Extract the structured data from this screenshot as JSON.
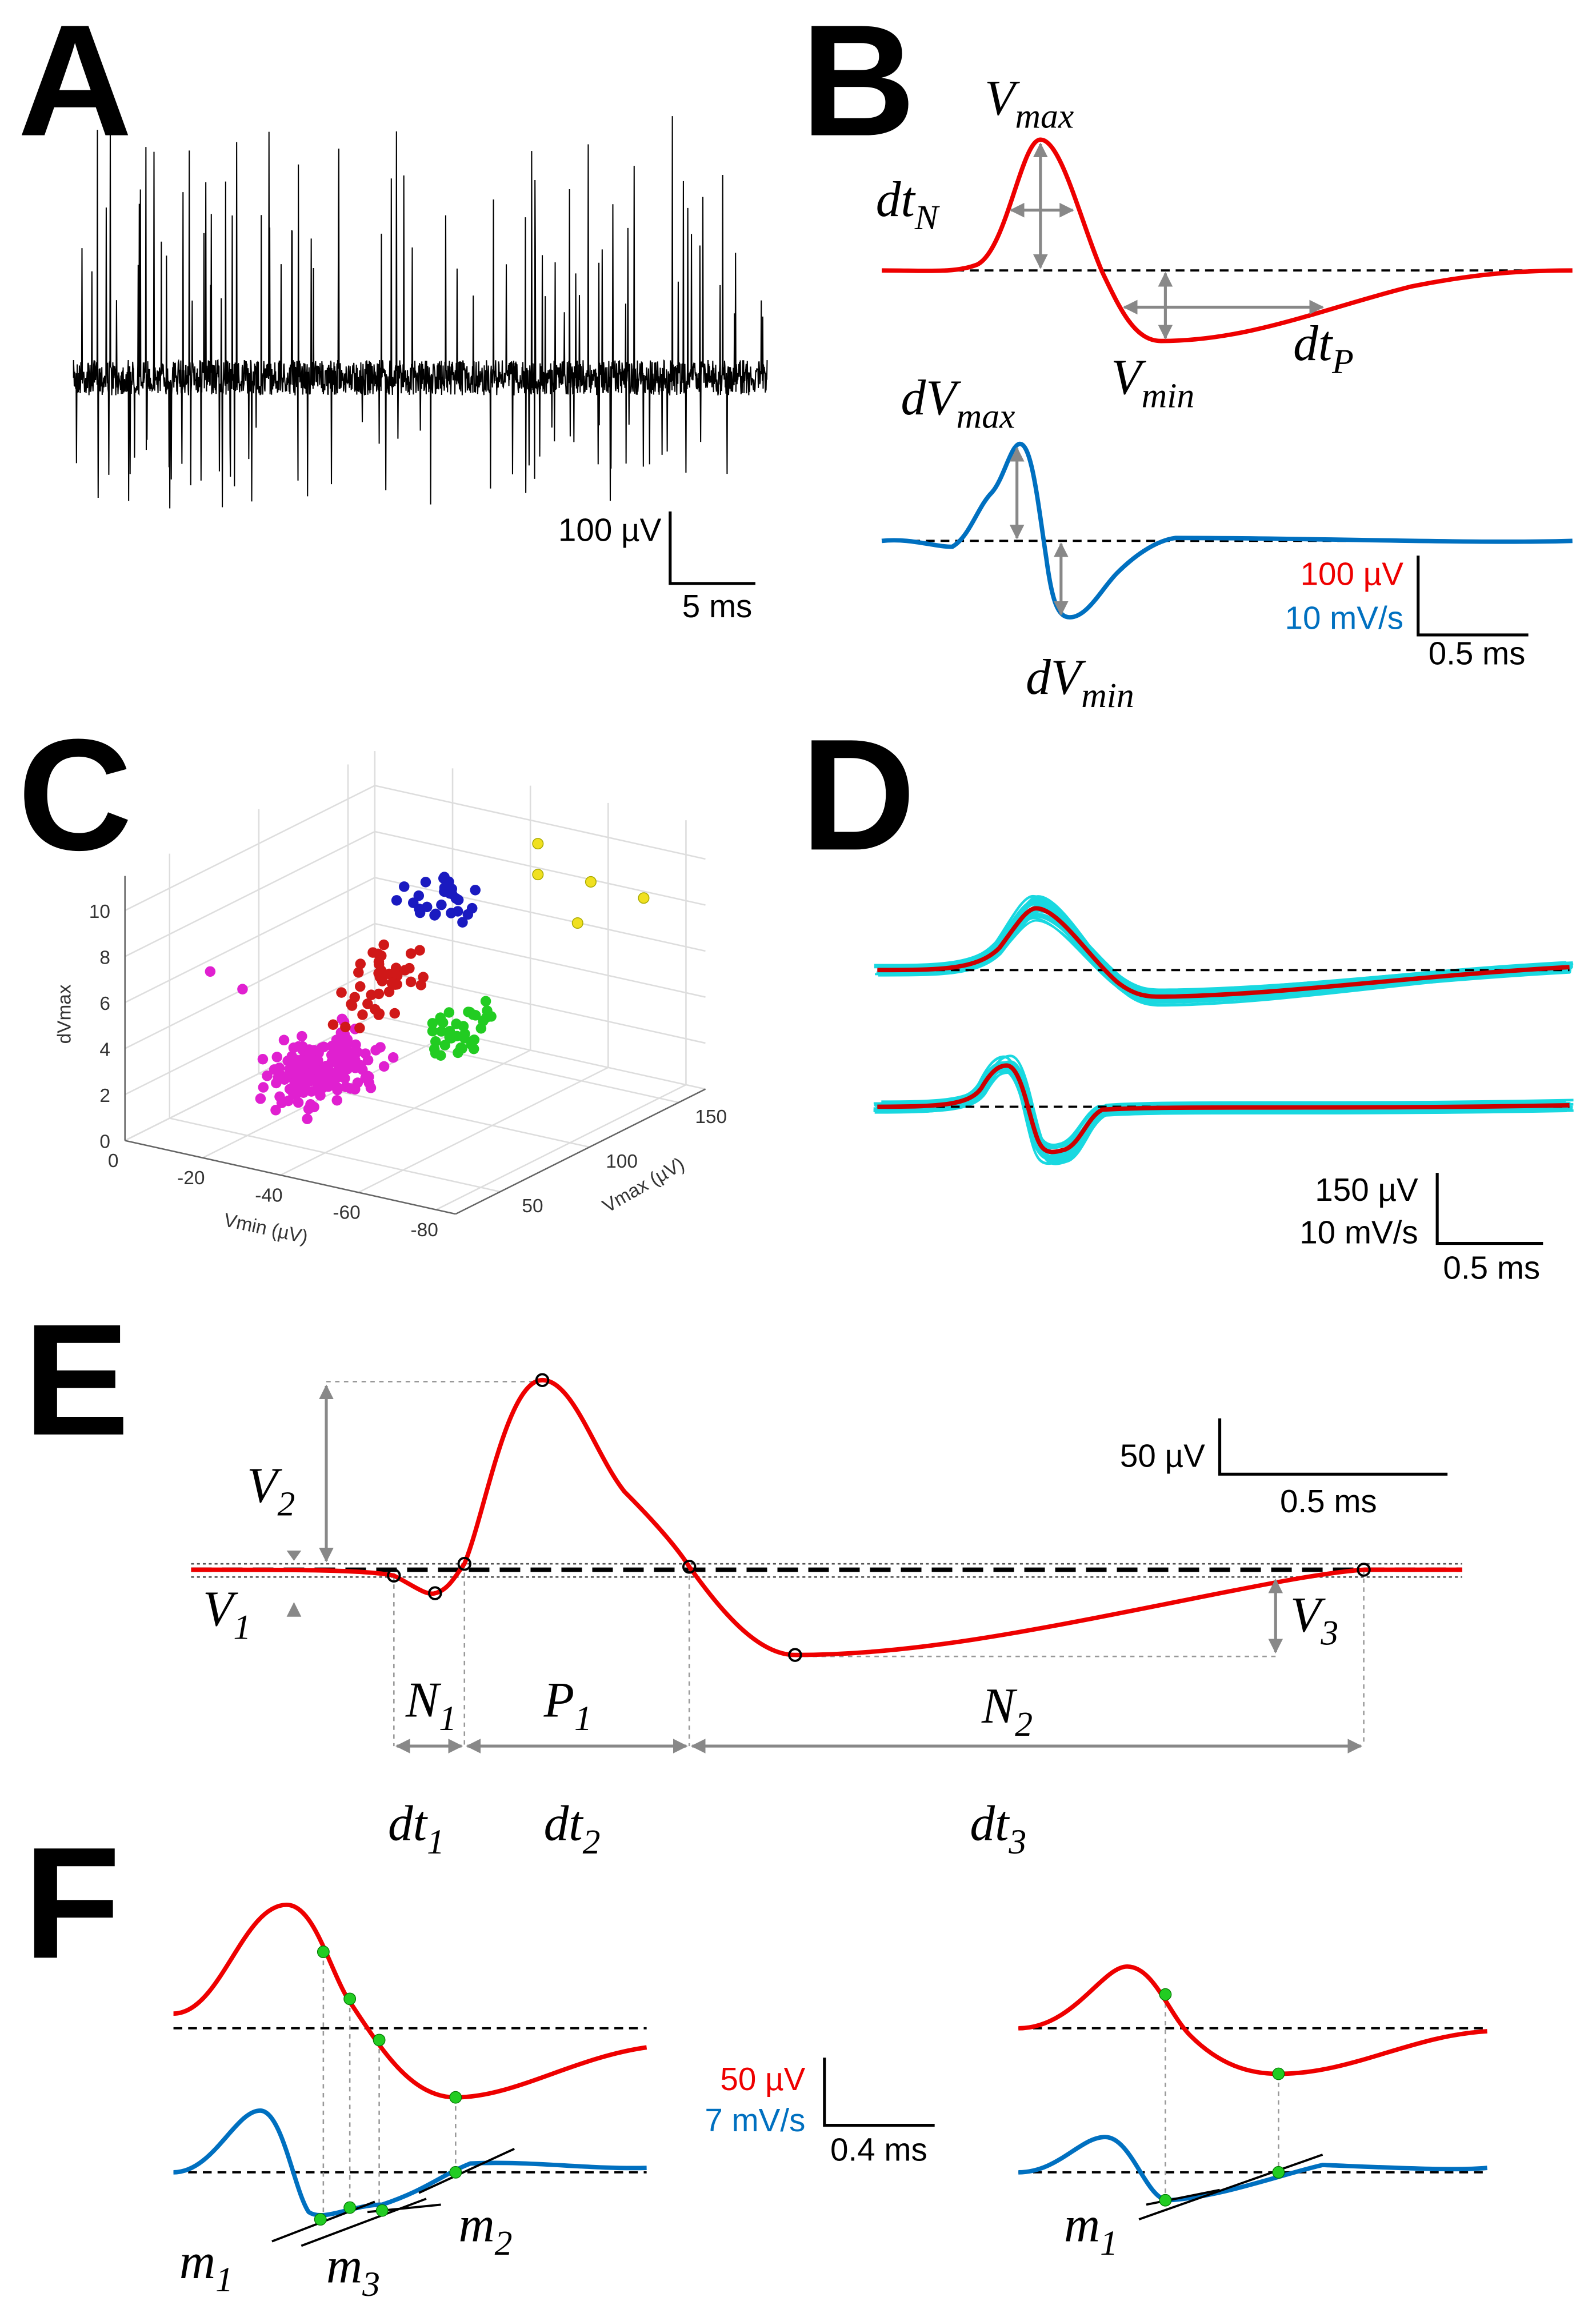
{
  "A": {
    "label": "A",
    "scale_v": "100 µV",
    "scale_t": "5 ms"
  },
  "B": {
    "label": "B",
    "Vmax": {
      "base": "V",
      "sub": "max"
    },
    "dtN": {
      "base": "dt",
      "sub": "N"
    },
    "Vmin": {
      "base": "V",
      "sub": "min"
    },
    "dtP": {
      "base": "dt",
      "sub": "P"
    },
    "dVmax": {
      "base": "dV",
      "sub": "max"
    },
    "dVmin": {
      "base": "dV",
      "sub": "min"
    },
    "scale_v": "100 µV",
    "scale_dv": "10 mV/s",
    "scale_t": "0.5 ms"
  },
  "C": {
    "label": "C",
    "axes": {
      "z": {
        "label": "dVmax",
        "lim": [
          0,
          11.5
        ],
        "ticks": [
          0,
          2,
          4,
          6,
          8,
          10
        ]
      },
      "x": {
        "label": "Vmin (µV)",
        "lim": [
          0,
          -85
        ],
        "ticks": [
          0,
          -20,
          -40,
          -60,
          -80
        ]
      },
      "y": {
        "label": "Vmax (µV)",
        "lim": [
          25,
          165
        ],
        "ticks": [
          50,
          100,
          150
        ]
      }
    }
  },
  "D": {
    "label": "D",
    "scale_v": "150 µV",
    "scale_dv": "10 mV/s",
    "scale_t": "0.5 ms"
  },
  "E": {
    "label": "E",
    "V2": {
      "base": "V",
      "sub": "2"
    },
    "V1": {
      "base": "V",
      "sub": "1"
    },
    "V3": {
      "base": "V",
      "sub": "3"
    },
    "N1": {
      "base": "N",
      "sub": "1"
    },
    "P1": {
      "base": "P",
      "sub": "1"
    },
    "N2": {
      "base": "N",
      "sub": "2"
    },
    "dt1": {
      "base": "dt",
      "sub": "1"
    },
    "dt2": {
      "base": "dt",
      "sub": "2"
    },
    "dt3": {
      "base": "dt",
      "sub": "3"
    },
    "scale_v": "50 µV",
    "scale_t": "0.5 ms"
  },
  "F": {
    "label": "F",
    "m1": {
      "base": "m",
      "sub": "1"
    },
    "m3": {
      "base": "m",
      "sub": "3"
    },
    "m2": {
      "base": "m",
      "sub": "2"
    },
    "m1_right": {
      "base": "m",
      "sub": "1"
    },
    "scale_v": "50 µV",
    "scale_dv": "7 mV/s",
    "scale_t": "0.4 ms"
  }
}
